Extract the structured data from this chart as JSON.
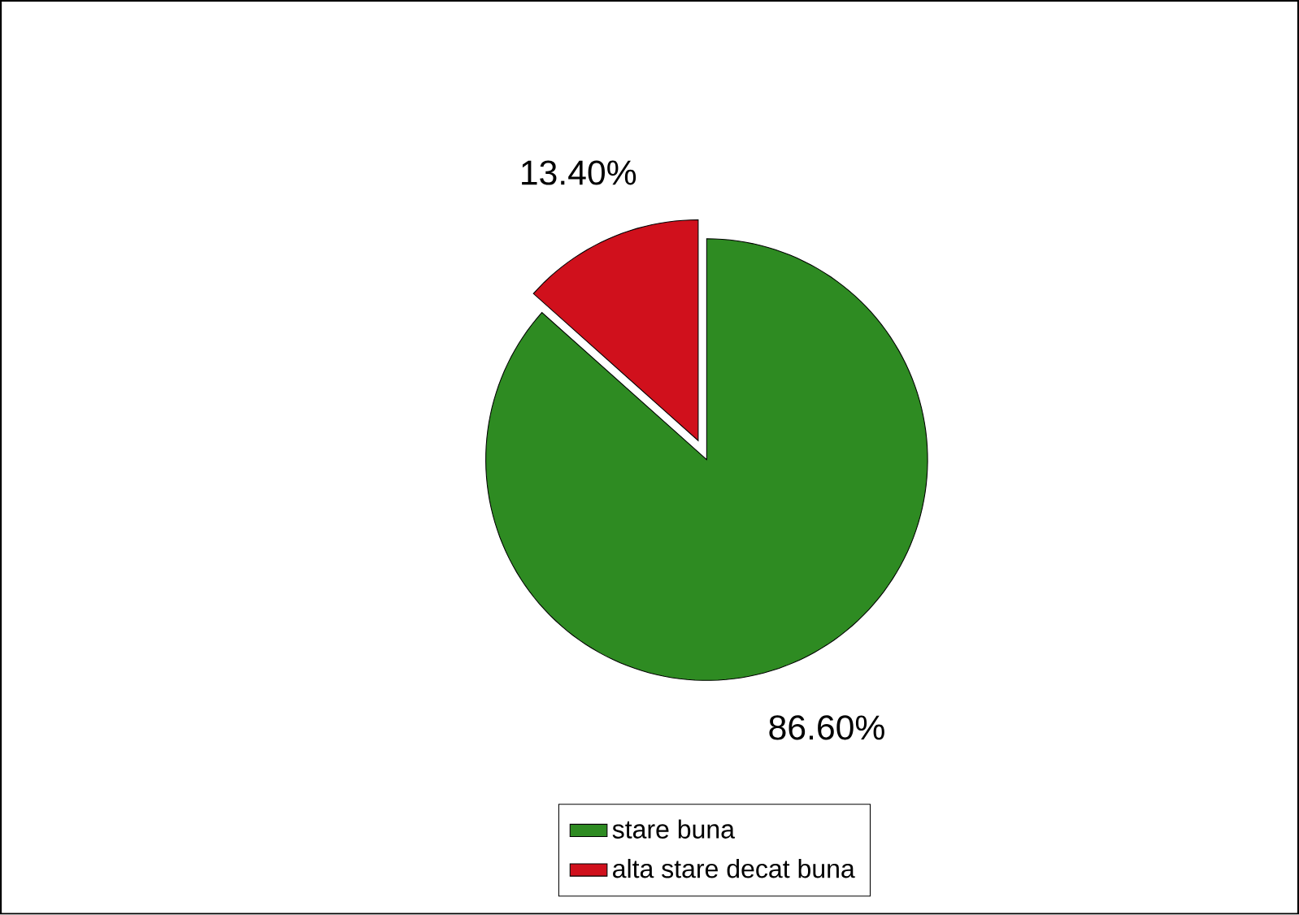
{
  "chart_data": {
    "type": "pie",
    "categories": [
      "stare buna",
      "alta stare decat buna"
    ],
    "values": [
      86.6,
      13.4
    ],
    "value_labels": [
      "86.60%",
      "13.40%"
    ],
    "colors": [
      "#2e8b22",
      "#d0101c"
    ],
    "legend": "bottom"
  }
}
